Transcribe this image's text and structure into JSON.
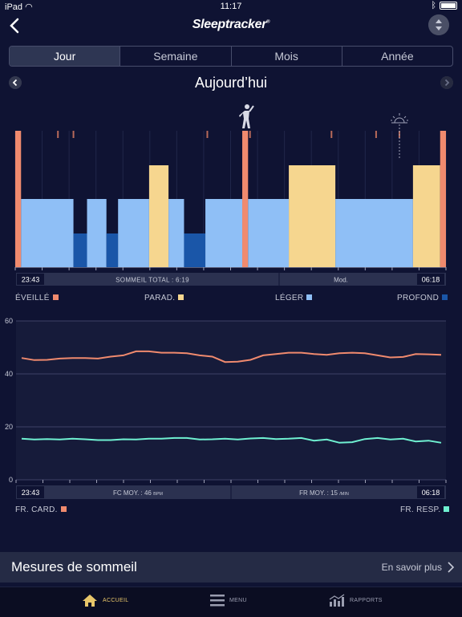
{
  "status": {
    "carrier": "iPad",
    "time": "11:17"
  },
  "header": {
    "logo": "Sleeptracker",
    "logo_mark": "®"
  },
  "tabs": [
    {
      "label": "Jour"
    },
    {
      "label": "Semaine"
    },
    {
      "label": "Mois"
    },
    {
      "label": "Année"
    }
  ],
  "day": {
    "title": "Aujourd’hui"
  },
  "colors": {
    "awake": "#f08a6e",
    "rem": "#f6d68f",
    "light": "#8fbff6",
    "deep": "#1a56a8",
    "hr": "#f08a6e",
    "resp": "#6ff0d1"
  },
  "icons": {
    "wake": "standing-person-icon",
    "sunrise": "sunrise-icon"
  },
  "sleep_chart": {
    "start_label": "23:43",
    "end_label": "06:18",
    "total_label": "SOMMEIL TOTAL : 6:19",
    "quality_label": "Mod."
  },
  "chart_data": [
    {
      "type": "bar",
      "stages": [
        "PROFOND",
        "LÉGER",
        "PARAD.",
        "ÉVEILLÉ"
      ],
      "timeline": [
        {
          "stage": "ÉVEILLÉ",
          "start_min": 0,
          "end_min": 3
        },
        {
          "stage": "LÉGER",
          "start_min": 3,
          "end_min": 30
        },
        {
          "stage": "PROFOND",
          "start_min": 30,
          "end_min": 37
        },
        {
          "stage": "LÉGER",
          "start_min": 37,
          "end_min": 47
        },
        {
          "stage": "PROFOND",
          "start_min": 47,
          "end_min": 53
        },
        {
          "stage": "LÉGER",
          "start_min": 53,
          "end_min": 69
        },
        {
          "stage": "PARAD.",
          "start_min": 69,
          "end_min": 79
        },
        {
          "stage": "LÉGER",
          "start_min": 79,
          "end_min": 87
        },
        {
          "stage": "PROFOND",
          "start_min": 87,
          "end_min": 98
        },
        {
          "stage": "LÉGER",
          "start_min": 98,
          "end_min": 117
        },
        {
          "stage": "ÉVEILLÉ",
          "start_min": 117,
          "end_min": 120
        },
        {
          "stage": "LÉGER",
          "start_min": 120,
          "end_min": 141
        },
        {
          "stage": "PARAD.",
          "start_min": 141,
          "end_min": 165
        },
        {
          "stage": "LÉGER",
          "start_min": 165,
          "end_min": 205
        },
        {
          "stage": "PARAD.",
          "start_min": 205,
          "end_min": 219
        },
        {
          "stage": "ÉVEILLÉ",
          "start_min": 219,
          "end_min": 222
        }
      ],
      "awake_ticks_min": [
        22,
        30,
        99,
        121,
        163,
        186,
        198
      ],
      "legend": [
        {
          "label": "ÉVEILLÉ",
          "stage": "ÉVEILLÉ"
        },
        {
          "label": "PARAD.",
          "stage": "PARAD."
        },
        {
          "label": "LÉGER",
          "stage": "LÉGER"
        },
        {
          "label": "PROFOND",
          "stage": "PROFOND"
        }
      ]
    },
    {
      "type": "line",
      "y_ticks": [
        0,
        20,
        40,
        60
      ],
      "ylim": [
        0,
        60
      ],
      "x_labels": {
        "start": "23:43",
        "end": "06:18"
      },
      "grid": true,
      "series": [
        {
          "name": "FR. CARD.",
          "key": "hr",
          "values": [
            46,
            45.2,
            45.3,
            45.8,
            46,
            46,
            45.8,
            46.5,
            47,
            48.5,
            48.5,
            48,
            48,
            47.8,
            47,
            46.5,
            44.5,
            44.6,
            45.3,
            47,
            47.5,
            48,
            48,
            47.5,
            47.2,
            47.8,
            48,
            47.8,
            47,
            46.2,
            46.4,
            47.5,
            47.4,
            47.2
          ]
        },
        {
          "name": "FR. RESP.",
          "key": "resp",
          "values": [
            15.5,
            15.2,
            15.4,
            15.2,
            15.5,
            15.3,
            15,
            15,
            15.3,
            15.2,
            15.5,
            15.5,
            15.8,
            15.8,
            15.2,
            15.3,
            15.5,
            15.2,
            15.6,
            15.8,
            15.4,
            15.5,
            15.8,
            14.8,
            15.2,
            14,
            14.2,
            15.4,
            15.8,
            15.2,
            15.5,
            14.5,
            14.8,
            14
          ]
        }
      ],
      "footer": {
        "hr_label": "FC MOY. : 46",
        "hr_unit": "BPM",
        "rr_label": "FR MOY. : 15",
        "rr_unit": "/MIN"
      },
      "legend": [
        {
          "label": "FR. CARD.",
          "key": "hr"
        },
        {
          "label": "FR. RESP.",
          "key": "resp"
        }
      ]
    }
  ],
  "metrics": {
    "title": "Mesures de sommeil",
    "more": "En savoir plus"
  },
  "tabbar": [
    {
      "label": "ACCUEIL",
      "icon": "home-icon"
    },
    {
      "label": "MENU",
      "icon": "menu-icon"
    },
    {
      "label": "RAPPORTS",
      "icon": "reports-icon"
    }
  ]
}
